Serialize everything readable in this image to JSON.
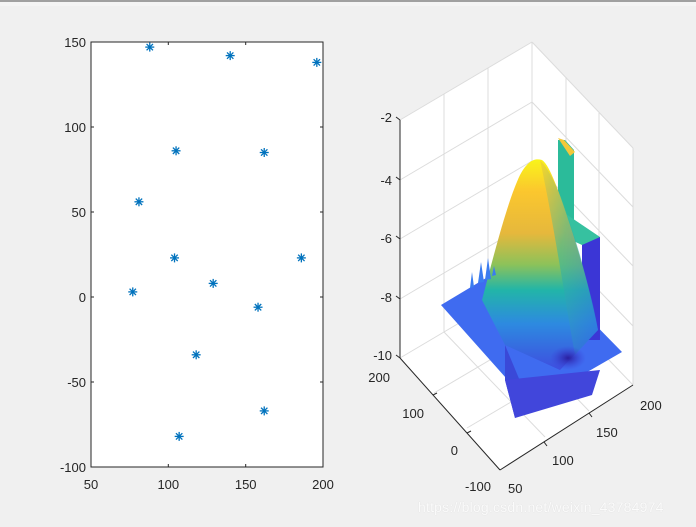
{
  "figure": {
    "background": "#f0f0f0",
    "watermark": "https://blog.csdn.net/weixin_43784974"
  },
  "chart_data": [
    {
      "type": "scatter",
      "title": "",
      "xlabel": "",
      "ylabel": "",
      "marker": "*",
      "marker_color": "#0072bd",
      "xlim": [
        50,
        200
      ],
      "ylim": [
        -100,
        150
      ],
      "xticks": [
        "50",
        "100",
        "150",
        "200"
      ],
      "yticks": [
        "-100",
        "-50",
        "0",
        "50",
        "100",
        "150"
      ],
      "grid": false,
      "points": [
        {
          "x": 88,
          "y": 147
        },
        {
          "x": 140,
          "y": 142
        },
        {
          "x": 196,
          "y": 138
        },
        {
          "x": 105,
          "y": 86
        },
        {
          "x": 162,
          "y": 85
        },
        {
          "x": 81,
          "y": 56
        },
        {
          "x": 104,
          "y": 23
        },
        {
          "x": 186,
          "y": 23
        },
        {
          "x": 77,
          "y": 3
        },
        {
          "x": 129,
          "y": 8
        },
        {
          "x": 158,
          "y": -6
        },
        {
          "x": 118,
          "y": -34
        },
        {
          "x": 162,
          "y": -67
        },
        {
          "x": 107,
          "y": -82
        }
      ]
    },
    {
      "type": "surface3d",
      "title": "",
      "xlabel": "",
      "ylabel": "",
      "zlabel": "",
      "colormap": "parula",
      "xlim": [
        50,
        200
      ],
      "ylim": [
        -100,
        200
      ],
      "zlim": [
        -10,
        -2
      ],
      "xticks": [
        "50",
        "100",
        "150",
        "200"
      ],
      "yticks": [
        "-100",
        "0",
        "100",
        "200"
      ],
      "zticks": [
        "-10",
        "-8",
        "-6",
        "-4",
        "-2"
      ],
      "grid": true,
      "description": "Surface with a single peak near z≈-3.5 rising from a flat base near z≈-8.5, with a thin vertical wall reaching ≈-2.5 and a depression near z≈-9.5",
      "peak_z": -3.5,
      "base_z": -8.5,
      "min_z": -9.7
    }
  ]
}
